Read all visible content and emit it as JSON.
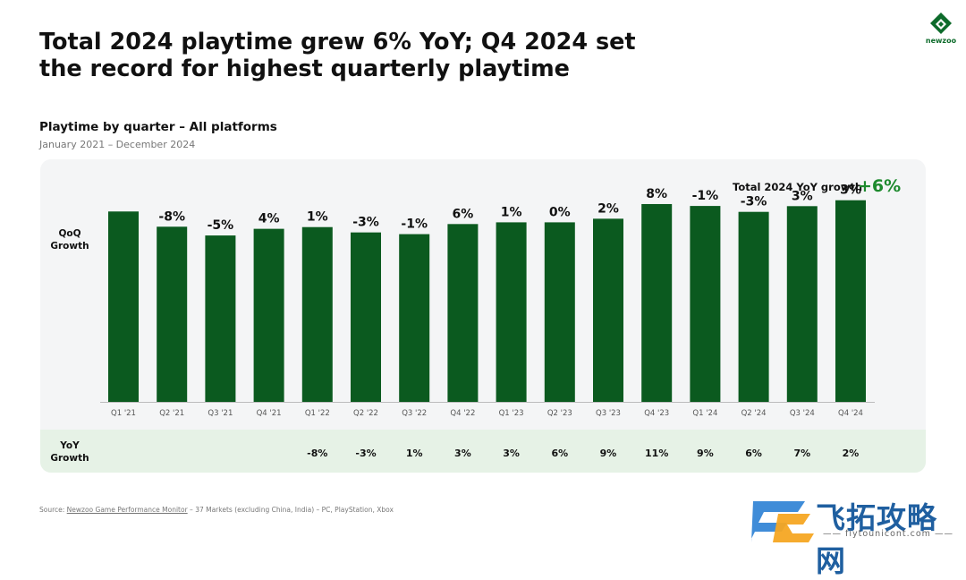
{
  "headline": {
    "line1": "Total 2024 playtime grew 6% YoY; Q4 2024 set",
    "line2": "the record for highest quarterly playtime"
  },
  "logo": {
    "text": "newzoo",
    "icon": "newzoo-logo-icon",
    "color": "#0d6b2b"
  },
  "subtitle": "Playtime by quarter – All platforms",
  "date_range": "January 2021 – December 2024",
  "total_yoy": {
    "label": "Total 2024 YoY growth",
    "value": "+6%"
  },
  "row_labels": {
    "qoq_line1": "QoQ",
    "qoq_line2": "Growth",
    "yoy_line1": "YoY",
    "yoy_line2": "Growth"
  },
  "source": {
    "prefix": "Source: ",
    "link": "Newzoo Game Performance Monitor",
    "rest": " – 37 Markets (excluding China, India) – PC, PlayStation, Xbox"
  },
  "watermark": {
    "cn": "飞拓攻略网",
    "url": "—— fiytounicont.com ——",
    "icon": "fz-logo-icon"
  },
  "colors": {
    "bar": "#0b5a1f",
    "accent_green": "#1e8a2e",
    "panel": "#f4f5f6",
    "yoy_band": "#e6f2e6"
  },
  "chart_data": {
    "type": "bar",
    "title": "Playtime by quarter – All platforms",
    "subtitle": "January 2021 – December 2024",
    "categories": [
      "Q1 '21",
      "Q2 '21",
      "Q3 '21",
      "Q4 '21",
      "Q1 '22",
      "Q2 '22",
      "Q3 '22",
      "Q4 '22",
      "Q1 '23",
      "Q2 '23",
      "Q3 '23",
      "Q4 '23",
      "Q1 '24",
      "Q2 '24",
      "Q3 '24",
      "Q4 '24"
    ],
    "values": [
      100,
      92,
      87.4,
      90.9,
      91.8,
      89.0,
      88.1,
      93.4,
      94.3,
      94.3,
      96.2,
      103.9,
      102.9,
      99.8,
      102.8,
      105.9
    ],
    "qoq_growth": [
      "",
      "-8%",
      "-5%",
      "4%",
      "1%",
      "-3%",
      "-1%",
      "6%",
      "1%",
      "0%",
      "2%",
      "8%",
      "-1%",
      "-3%",
      "3%",
      "3%"
    ],
    "yoy_growth": [
      "",
      "",
      "",
      "",
      "-8%",
      "-3%",
      "1%",
      "3%",
      "3%",
      "6%",
      "9%",
      "11%",
      "9%",
      "6%",
      "7%",
      "2%"
    ],
    "ylim": [
      0,
      110
    ],
    "xlabel": "",
    "ylabel": "",
    "grid": false,
    "legend": "none"
  }
}
